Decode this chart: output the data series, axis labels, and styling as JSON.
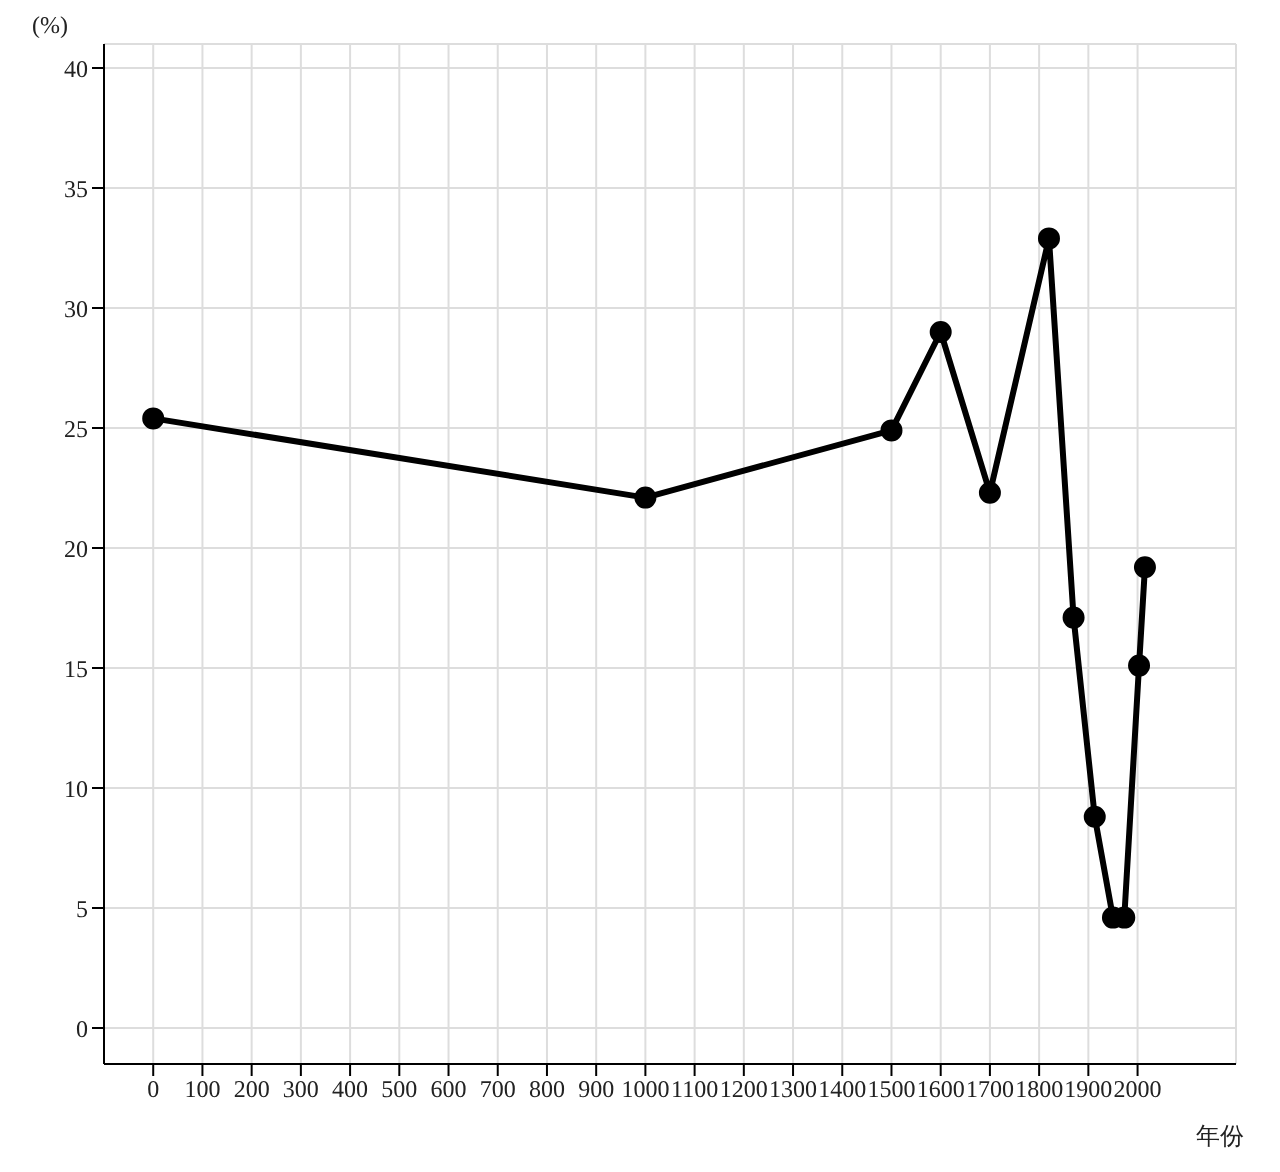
{
  "chart_data": {
    "type": "line",
    "xlabel": "年份",
    "ylabel": "(%)",
    "x": [
      0,
      1000,
      1500,
      1600,
      1700,
      1820,
      1870,
      1913,
      1950,
      1973,
      2003,
      2015
    ],
    "series": [
      {
        "color": "#000000",
        "values": [
          25.4,
          22.1,
          24.9,
          29.0,
          22.3,
          32.9,
          17.1,
          8.8,
          4.6,
          4.6,
          15.1,
          19.2
        ]
      }
    ],
    "xlim": [
      -100,
      2200
    ],
    "xticks": [
      0,
      100,
      200,
      300,
      400,
      500,
      600,
      700,
      800,
      900,
      1000,
      1100,
      1200,
      1300,
      1400,
      1500,
      1600,
      1700,
      1800,
      1900,
      2000
    ],
    "ylim": [
      -1.5,
      41
    ],
    "yticks": [
      0,
      5,
      10,
      15,
      20,
      25,
      30,
      35,
      40
    ],
    "grid": true,
    "legend": false,
    "marker": "circle",
    "line_style": "solid"
  }
}
